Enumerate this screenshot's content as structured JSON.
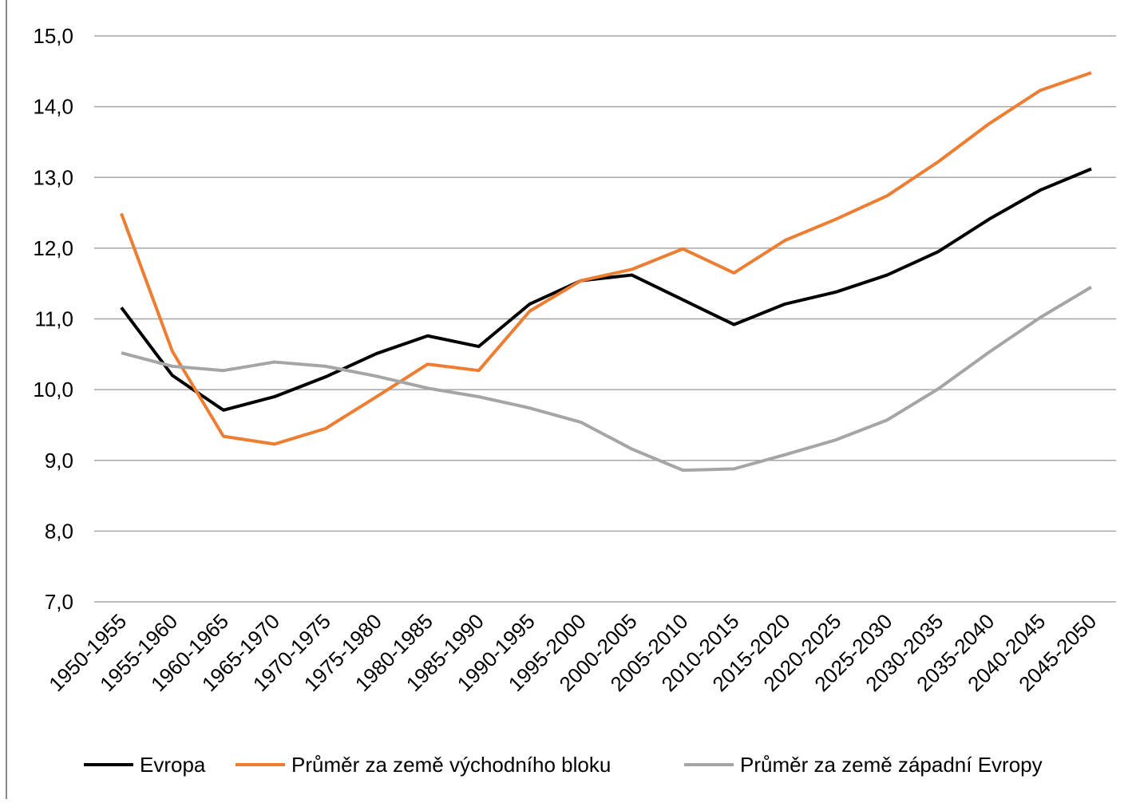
{
  "chart_data": {
    "type": "line",
    "categories": [
      "1950-1955",
      "1955-1960",
      "1960-1965",
      "1965-1970",
      "1970-1975",
      "1975-1980",
      "1980-1985",
      "1985-1990",
      "1990-1995",
      "1995-2000",
      "2000-2005",
      "2005-2010",
      "2010-2015",
      "2015-2020",
      "2020-2025",
      "2025-2030",
      "2030-2035",
      "2035-2040",
      "2040-2045",
      "2045-2050"
    ],
    "series": [
      {
        "name": "Evropa",
        "color": "#000000",
        "values": [
          11.16,
          10.2,
          9.71,
          9.9,
          10.18,
          10.51,
          10.76,
          10.61,
          11.21,
          11.54,
          11.62,
          11.27,
          10.92,
          11.21,
          11.38,
          11.62,
          11.95,
          12.41,
          12.82,
          13.12
        ]
      },
      {
        "name": "Průměr za země východního bloku",
        "color": "#ed7d31",
        "values": [
          12.49,
          10.54,
          9.34,
          9.23,
          9.45,
          9.9,
          10.36,
          10.27,
          11.11,
          11.54,
          11.7,
          11.99,
          11.65,
          12.11,
          12.41,
          12.74,
          13.22,
          13.76,
          14.23,
          14.48
        ]
      },
      {
        "name": "Průměr za země západní Evropy",
        "color": "#a5a5a5",
        "values": [
          10.52,
          10.33,
          10.27,
          10.39,
          10.33,
          10.19,
          10.02,
          9.9,
          9.74,
          9.54,
          9.16,
          8.86,
          8.88,
          9.08,
          9.29,
          9.57,
          10.01,
          10.53,
          11.02,
          11.45
        ]
      }
    ],
    "ylim": [
      7,
      15
    ],
    "yticks": [
      {
        "value": 7,
        "label": "7,0"
      },
      {
        "value": 8,
        "label": "8,0"
      },
      {
        "value": 9,
        "label": "9,0"
      },
      {
        "value": 10,
        "label": "10,0"
      },
      {
        "value": 11,
        "label": "11,0"
      },
      {
        "value": 12,
        "label": "12,0"
      },
      {
        "value": 13,
        "label": "13,0"
      },
      {
        "value": 14,
        "label": "14,0"
      },
      {
        "value": 15,
        "label": "15,0"
      }
    ],
    "grid": true,
    "legend": "bottom"
  }
}
